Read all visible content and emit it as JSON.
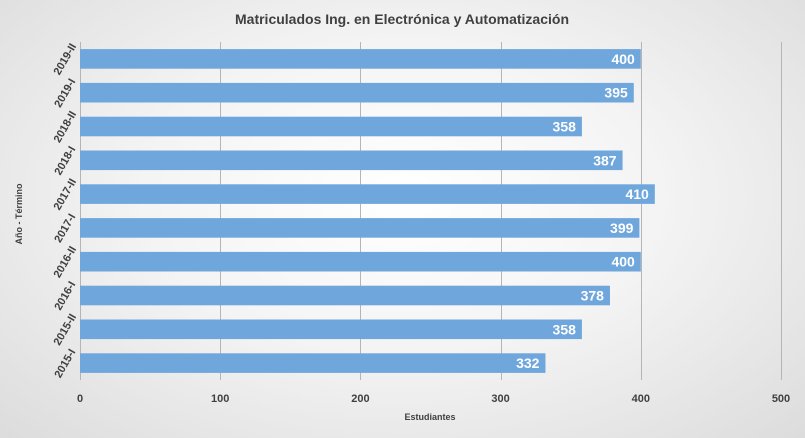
{
  "chart_data": {
    "type": "bar",
    "orientation": "horizontal",
    "title": "Matriculados Ing. en Electrónica y Automatización",
    "xlabel": "Estudiantes",
    "ylabel": "Año - Término",
    "categories": [
      "2019-II",
      "2019-I",
      "2018-II",
      "2018-I",
      "2017-II",
      "2017-I",
      "2016-II",
      "2016-I",
      "2015-II",
      "2015-I"
    ],
    "values": [
      400,
      395,
      358,
      387,
      410,
      399,
      400,
      378,
      358,
      332
    ],
    "xlim": [
      0,
      500
    ],
    "xticks": [
      0,
      100,
      200,
      300,
      400,
      500
    ],
    "grid": true,
    "legend": "none",
    "data_labels": true,
    "colors": {
      "bar": "#6fa6dc",
      "grid": "#b5b5b5",
      "text": "#404040",
      "label": "#ffffff"
    }
  }
}
